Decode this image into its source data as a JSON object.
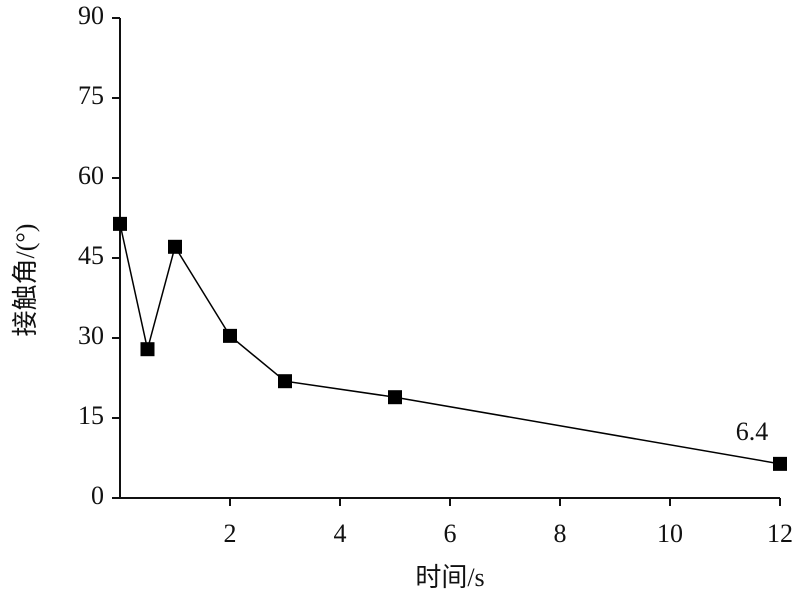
{
  "chart_data": {
    "type": "line",
    "x_label": "时间/s",
    "y_label": "接触角/(°)",
    "x": [
      0,
      0.5,
      1,
      2,
      3,
      5,
      12
    ],
    "values": [
      51.4,
      27.9,
      47.1,
      30.4,
      21.9,
      18.9,
      6.4
    ],
    "color": "#000000",
    "xlim": [
      0,
      12
    ],
    "xticks": [
      2,
      4,
      6,
      8,
      10,
      12
    ],
    "ylim": [
      0,
      90
    ],
    "yticks": [
      0,
      15,
      30,
      45,
      60,
      75,
      90
    ],
    "grid": false
  }
}
